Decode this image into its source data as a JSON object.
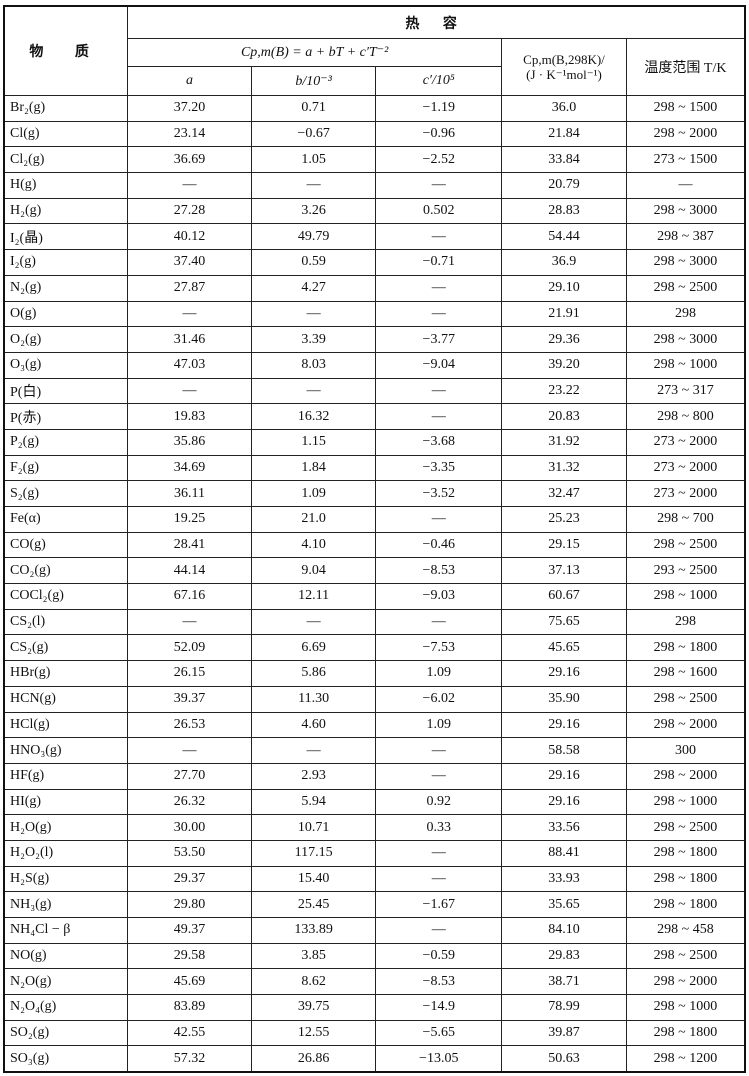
{
  "header": {
    "substance": "物 质",
    "heat_capacity": "热 容",
    "formula": "Cp,m(B) = a + bT + c′T⁻²",
    "col_a": "a",
    "col_b": "b/10⁻³",
    "col_c": "c′/10⁵",
    "cp298_line1": "Cp,m(B,298K)/",
    "cp298_line2": "(J · K⁻¹mol⁻¹)",
    "temp_range": "温度范围 T/K"
  },
  "rows": [
    [
      "Br₂(g)",
      "37.20",
      "0.71",
      "−1.19",
      "36.0",
      "298 ~ 1500"
    ],
    [
      "Cl(g)",
      "23.14",
      "−0.67",
      "−0.96",
      "21.84",
      "298 ~ 2000"
    ],
    [
      "Cl₂(g)",
      "36.69",
      "1.05",
      "−2.52",
      "33.84",
      "273 ~ 1500"
    ],
    [
      "H(g)",
      "—",
      "—",
      "—",
      "20.79",
      "—"
    ],
    [
      "H₂(g)",
      "27.28",
      "3.26",
      "0.502",
      "28.83",
      "298 ~ 3000"
    ],
    [
      "I₂(晶)",
      "40.12",
      "49.79",
      "—",
      "54.44",
      "298 ~ 387"
    ],
    [
      "I₂(g)",
      "37.40",
      "0.59",
      "−0.71",
      "36.9",
      "298 ~ 3000"
    ],
    [
      "N₂(g)",
      "27.87",
      "4.27",
      "—",
      "29.10",
      "298 ~ 2500"
    ],
    [
      "O(g)",
      "—",
      "—",
      "—",
      "21.91",
      "298"
    ],
    [
      "O₂(g)",
      "31.46",
      "3.39",
      "−3.77",
      "29.36",
      "298 ~ 3000"
    ],
    [
      "O₃(g)",
      "47.03",
      "8.03",
      "−9.04",
      "39.20",
      "298 ~ 1000"
    ],
    [
      "P(白)",
      "—",
      "—",
      "—",
      "23.22",
      "273 ~ 317"
    ],
    [
      "P(赤)",
      "19.83",
      "16.32",
      "—",
      "20.83",
      "298 ~ 800"
    ],
    [
      "P₂(g)",
      "35.86",
      "1.15",
      "−3.68",
      "31.92",
      "273 ~ 2000"
    ],
    [
      "F₂(g)",
      "34.69",
      "1.84",
      "−3.35",
      "31.32",
      "273 ~ 2000"
    ],
    [
      "S₂(g)",
      "36.11",
      "1.09",
      "−3.52",
      "32.47",
      "273 ~ 2000"
    ],
    [
      "Fe(α)",
      "19.25",
      "21.0",
      "—",
      "25.23",
      "298 ~ 700"
    ],
    [
      "CO(g)",
      "28.41",
      "4.10",
      "−0.46",
      "29.15",
      "298 ~ 2500"
    ],
    [
      "CO₂(g)",
      "44.14",
      "9.04",
      "−8.53",
      "37.13",
      "293 ~ 2500"
    ],
    [
      "COCl₂(g)",
      "67.16",
      "12.11",
      "−9.03",
      "60.67",
      "298 ~ 1000"
    ],
    [
      "CS₂(l)",
      "—",
      "—",
      "—",
      "75.65",
      "298"
    ],
    [
      "CS₂(g)",
      "52.09",
      "6.69",
      "−7.53",
      "45.65",
      "298 ~ 1800"
    ],
    [
      "HBr(g)",
      "26.15",
      "5.86",
      "1.09",
      "29.16",
      "298 ~ 1600"
    ],
    [
      "HCN(g)",
      "39.37",
      "11.30",
      "−6.02",
      "35.90",
      "298 ~ 2500"
    ],
    [
      "HCl(g)",
      "26.53",
      "4.60",
      "1.09",
      "29.16",
      "298 ~ 2000"
    ],
    [
      "HNO₃(g)",
      "—",
      "—",
      "—",
      "58.58",
      "300"
    ],
    [
      "HF(g)",
      "27.70",
      "2.93",
      "—",
      "29.16",
      "298 ~ 2000"
    ],
    [
      "HI(g)",
      "26.32",
      "5.94",
      "0.92",
      "29.16",
      "298 ~ 1000"
    ],
    [
      "H₂O(g)",
      "30.00",
      "10.71",
      "0.33",
      "33.56",
      "298 ~ 2500"
    ],
    [
      "H₂O₂(l)",
      "53.50",
      "117.15",
      "—",
      "88.41",
      "298 ~ 1800"
    ],
    [
      "H₂S(g)",
      "29.37",
      "15.40",
      "—",
      "33.93",
      "298 ~ 1800"
    ],
    [
      "NH₃(g)",
      "29.80",
      "25.45",
      "−1.67",
      "35.65",
      "298 ~ 1800"
    ],
    [
      "NH₄Cl − β",
      "49.37",
      "133.89",
      "—",
      "84.10",
      "298 ~ 458"
    ],
    [
      "NO(g)",
      "29.58",
      "3.85",
      "−0.59",
      "29.83",
      "298 ~ 2500"
    ],
    [
      "N₂O(g)",
      "45.69",
      "8.62",
      "−8.53",
      "38.71",
      "298 ~ 2000"
    ],
    [
      "N₂O₄(g)",
      "83.89",
      "39.75",
      "−14.9",
      "78.99",
      "298 ~ 1000"
    ],
    [
      "SO₂(g)",
      "42.55",
      "12.55",
      "−5.65",
      "39.87",
      "298 ~ 1800"
    ],
    [
      "SO₃(g)",
      "57.32",
      "26.86",
      "−13.05",
      "50.63",
      "298 ~ 1200"
    ]
  ]
}
